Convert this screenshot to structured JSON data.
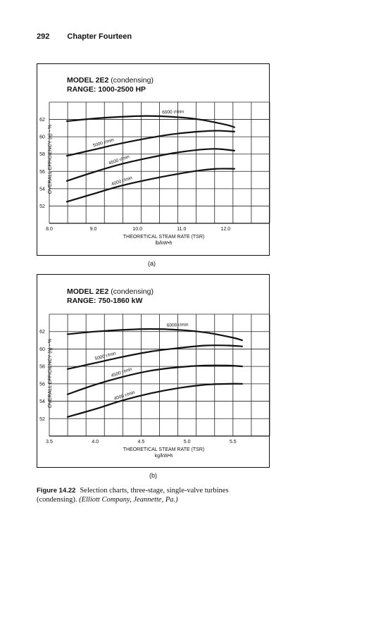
{
  "header": {
    "page_number": "292",
    "chapter": "Chapter Fourteen"
  },
  "figure": {
    "number": "Figure 14.22",
    "caption": "Selection charts, three-stage, single-valve turbines (condensing).",
    "credit": "(Elliott Company, Jeannette, Pa.)"
  },
  "chart_data": [
    {
      "type": "line",
      "panel_label": "(a)",
      "title": "MODEL 2E2",
      "title_suffix": "(condensing)",
      "subtitle": "RANGE: 1000-2500 HP",
      "ylabel": "OVERALL EFFICIENCY (η) - %",
      "xlabel": "THEORETICAL STEAM RATE (TSR)",
      "xunit": "lb/kW•h",
      "xlim": [
        8.0,
        13.0
      ],
      "ylim": [
        50,
        64
      ],
      "xticks": [
        8.0,
        9.0,
        10.0,
        11.0,
        12.0
      ],
      "xtick_labels": [
        "8.0",
        "9.0",
        "10.0",
        "11.0",
        "12.0"
      ],
      "yticks": [
        52,
        54,
        56,
        58,
        60,
        62
      ],
      "grid": true,
      "series": [
        {
          "name": "6000 r/min",
          "x": [
            8.4,
            9.0,
            9.6,
            10.2,
            10.8,
            11.4,
            12.0,
            12.2
          ],
          "y": [
            61.8,
            62.1,
            62.3,
            62.4,
            62.3,
            62.0,
            61.4,
            61.1
          ]
        },
        {
          "name": "5000 r/min",
          "x": [
            8.4,
            9.0,
            9.6,
            10.2,
            10.8,
            11.4,
            11.8,
            12.2
          ],
          "y": [
            57.8,
            58.5,
            59.2,
            59.8,
            60.3,
            60.6,
            60.7,
            60.6
          ]
        },
        {
          "name": "4500 r/min",
          "x": [
            8.4,
            9.0,
            9.6,
            10.2,
            10.8,
            11.4,
            11.8,
            12.2
          ],
          "y": [
            54.9,
            55.9,
            56.8,
            57.5,
            58.1,
            58.5,
            58.6,
            58.4
          ]
        },
        {
          "name": "4000 r/min",
          "x": [
            8.4,
            9.0,
            9.6,
            10.2,
            10.8,
            11.4,
            11.8,
            12.2
          ],
          "y": [
            52.5,
            53.4,
            54.3,
            55.0,
            55.6,
            56.1,
            56.3,
            56.3
          ]
        }
      ]
    },
    {
      "type": "line",
      "panel_label": "(b)",
      "title": "MODEL 2E2",
      "title_suffix": "(condensing)",
      "subtitle": "RANGE: 750-1860 kW",
      "ylabel": "OVERALL EFFICIENCY (η) - %",
      "xlabel": "THEORETICAL STEAM RATE (TSR)",
      "xunit": "kg/kW•h",
      "xlim": [
        3.5,
        5.9
      ],
      "ylim": [
        50,
        64
      ],
      "xticks": [
        3.5,
        4.0,
        4.5,
        5.0,
        5.5
      ],
      "xtick_labels": [
        "3.5",
        "4.0",
        "4.5",
        "5.0",
        "5.5"
      ],
      "yticks": [
        52,
        54,
        56,
        58,
        60,
        62
      ],
      "grid": true,
      "series": [
        {
          "name": "6000 r/min",
          "x": [
            3.7,
            4.0,
            4.3,
            4.6,
            4.9,
            5.2,
            5.5,
            5.6
          ],
          "y": [
            61.7,
            62.0,
            62.2,
            62.3,
            62.2,
            61.9,
            61.3,
            61.0
          ]
        },
        {
          "name": "5000 r/min",
          "x": [
            3.7,
            4.0,
            4.3,
            4.6,
            4.9,
            5.2,
            5.45,
            5.6
          ],
          "y": [
            57.7,
            58.4,
            59.1,
            59.7,
            60.1,
            60.4,
            60.4,
            60.3
          ]
        },
        {
          "name": "4500 r/min",
          "x": [
            3.7,
            4.0,
            4.3,
            4.6,
            4.9,
            5.2,
            5.45,
            5.6
          ],
          "y": [
            54.8,
            55.9,
            56.8,
            57.5,
            57.9,
            58.1,
            58.1,
            58.0
          ]
        },
        {
          "name": "4000 r/min",
          "x": [
            3.7,
            4.0,
            4.3,
            4.6,
            4.9,
            5.2,
            5.45,
            5.6
          ],
          "y": [
            52.2,
            53.1,
            54.1,
            54.9,
            55.5,
            55.9,
            56.0,
            56.0
          ]
        }
      ]
    }
  ]
}
